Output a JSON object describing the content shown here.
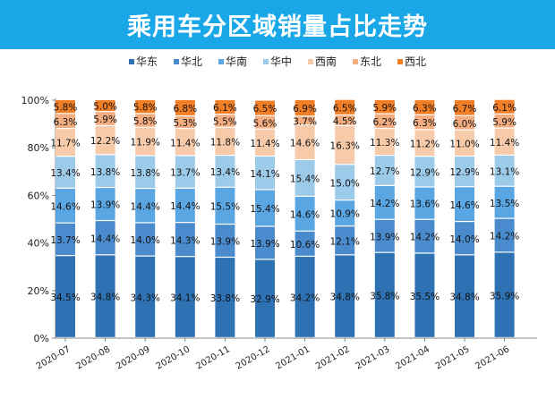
{
  "chart_data": {
    "type": "bar",
    "stacked": true,
    "title": "乘用车分区域销量占比走势",
    "categories": [
      "2020-07",
      "2020-08",
      "2020-09",
      "2020-10",
      "2020-11",
      "2020-12",
      "2021-01",
      "2021-02",
      "2021-03",
      "2021-04",
      "2021-05",
      "2021-06"
    ],
    "series": [
      {
        "name": "华东",
        "color": "#2e72b4",
        "values": [
          34.5,
          34.8,
          34.3,
          34.1,
          33.8,
          32.9,
          34.2,
          34.8,
          35.8,
          35.5,
          34.8,
          35.9
        ]
      },
      {
        "name": "华北",
        "color": "#4a8bcd",
        "values": [
          13.7,
          14.4,
          14.0,
          14.3,
          13.9,
          13.9,
          10.6,
          12.1,
          13.9,
          14.2,
          14.0,
          14.2
        ]
      },
      {
        "name": "华南",
        "color": "#5aa6e2",
        "values": [
          14.6,
          13.9,
          14.4,
          14.4,
          15.5,
          15.4,
          14.6,
          10.9,
          14.2,
          13.6,
          14.6,
          13.5
        ]
      },
      {
        "name": "华中",
        "color": "#9ccae9",
        "values": [
          13.4,
          13.8,
          13.8,
          13.7,
          13.4,
          14.1,
          15.4,
          15.0,
          12.7,
          12.9,
          12.9,
          13.1
        ]
      },
      {
        "name": "西南",
        "color": "#f7caa9",
        "values": [
          11.7,
          12.2,
          11.9,
          11.4,
          11.8,
          11.4,
          14.6,
          16.3,
          11.3,
          11.2,
          11.0,
          11.4
        ]
      },
      {
        "name": "东北",
        "color": "#f3ad80",
        "values": [
          6.3,
          5.9,
          5.8,
          5.3,
          5.5,
          5.6,
          3.7,
          4.5,
          6.2,
          6.3,
          6.0,
          5.9
        ]
      },
      {
        "name": "西北",
        "color": "#f27e26",
        "values": [
          5.8,
          5.0,
          5.8,
          6.8,
          6.1,
          6.5,
          6.9,
          6.5,
          5.9,
          6.3,
          6.7,
          6.1
        ]
      }
    ],
    "yticks": [
      "0%",
      "20%",
      "40%",
      "60%",
      "80%",
      "100%"
    ],
    "ylim": [
      0,
      100
    ],
    "legend": "top",
    "grid": false
  }
}
